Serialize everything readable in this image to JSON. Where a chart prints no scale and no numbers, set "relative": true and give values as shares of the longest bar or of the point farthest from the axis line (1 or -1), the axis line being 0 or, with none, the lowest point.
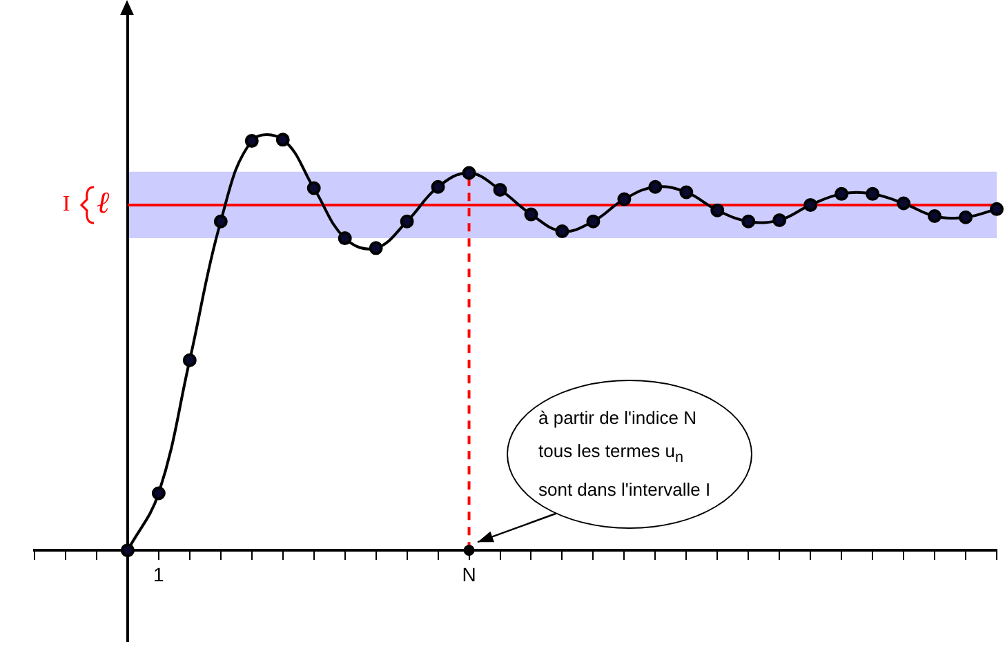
{
  "chart_data": {
    "type": "line",
    "relative": true,
    "categories": [
      null,
      null,
      null,
      null,
      "1",
      null,
      null,
      null,
      null,
      null,
      null,
      null,
      null,
      null,
      "N",
      null,
      null,
      null,
      null,
      null,
      null,
      null,
      null,
      null,
      null,
      null,
      null,
      null,
      null,
      null,
      null,
      null
    ],
    "series": [
      {
        "color": "#000000",
        "values": [
          null,
          null,
          null,
          0,
          0.139,
          0.463,
          0.801,
          0.997,
          1,
          0.882,
          0.76,
          0.736,
          0.801,
          0.885,
          0.919,
          0.878,
          0.818,
          0.777,
          0.801,
          0.855,
          0.885,
          0.872,
          0.828,
          0.801,
          0.804,
          0.841,
          0.868,
          0.868,
          0.845,
          0.814,
          0.811,
          0.831
        ]
      }
    ],
    "ref_lines": [
      {
        "axis": "y",
        "value": 0.841,
        "label": "ℓ",
        "color": "#ff0000",
        "line_style": "solid"
      },
      {
        "axis": "x",
        "value": "N",
        "color": "#ff0000",
        "line_style": "dashed"
      }
    ],
    "bands": [
      {
        "axis": "y",
        "from": 0.76,
        "to": 0.922,
        "label": "I",
        "color": "#ccccff"
      }
    ],
    "annotations": [
      {
        "text": "à partir de l'indice N tous les termes u$_{n}$ sont dans l'intervalle I",
        "x": "N",
        "y": 0
      }
    ],
    "grid": false,
    "legend": false,
    "marker": "circle",
    "line_style": "solid"
  }
}
